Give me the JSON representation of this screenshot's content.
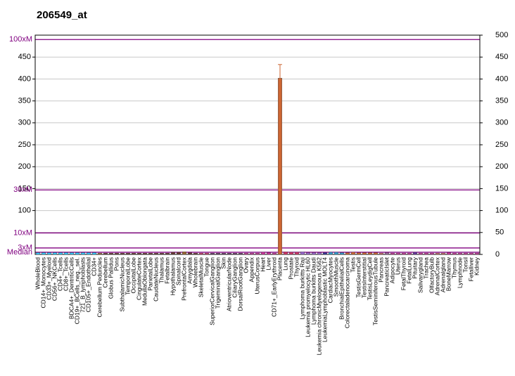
{
  "chart_data": {
    "type": "bar",
    "title": "206549_at",
    "categories": [
      "WholeBlood",
      "CD14+_Monocytes",
      "CD33+_Myeloid",
      "CD56+_NKCells",
      "CD4+_Tcells",
      "CD8+_Tcells",
      "BDCA4+_DentriticCells",
      "CD19+_BCells_neg._sel.",
      "721_B_lymphoblasts",
      "CD105+_Endothelial",
      "CD34+",
      "Cerebellum Peduncles",
      "Cerebellum",
      "Globus Pallidus",
      "Pons",
      "SubthalamicNucleus",
      "TemporalLobe",
      "OccipitalLobe",
      "CingulateCortex",
      "MedullaOblongata",
      "ParietalLobe",
      "CaudateNucleus",
      "Thalamus",
      "Fetalbrain",
      "Hypothalamus",
      "Spinalcord",
      "PrefrontalCortex",
      "Amygdala",
      "Wholebrain",
      "SkeletalMuscle",
      "Tongue",
      "SuperiorCervicalGanglion",
      "TrigeminalGanglion",
      "Skin",
      "AtrioventricularNode",
      "CiliaryGanglion",
      "DorsalRootGanglion",
      "Ovary",
      "Appendix",
      "UterusCorpus",
      "Heart",
      "Liver",
      "CD71+_EarlyErythroid",
      "Placenta",
      "Lung",
      "Prostate",
      "Thyroid",
      "Lymphoma burkitts Raji",
      "Leukemia promyelocytic HL60",
      "Lymphoma burkitts Daudi",
      "Leukemia chronicMyelogenous K562",
      "LeukemiaLymphoblastic MOLT4",
      "CardiacMyocytes",
      "SmoothMuscle",
      "BronchialEpithelialCells",
      "Colorectaladenocarcinoma",
      "Testis",
      "TestisGermCell",
      "TestisInterstitial",
      "TestisLeydigCell",
      "TestisSeminiferousTubule",
      "Pancreas",
      "PancreaticIslet",
      "Adipocyte",
      "Uterus",
      "FetalThyroid",
      "FetalLung",
      "Pituitary",
      "Salivarygland",
      "Trachea",
      "OlfactoryBulb",
      "AdrenalCortex",
      "Adrenalgland",
      "BoneMarrow",
      "Thymus",
      "Lymphnode",
      "Tonsil",
      "Fetalliver",
      "Kidney"
    ],
    "values": [
      4,
      4,
      4,
      4,
      4,
      4,
      4,
      4,
      4,
      4,
      4,
      3,
      3,
      3,
      3,
      3,
      3,
      3,
      3,
      3,
      3,
      3,
      3,
      3,
      5,
      5,
      6,
      4,
      3,
      3,
      3,
      3,
      3,
      3,
      3,
      3,
      3,
      3,
      3,
      3,
      5,
      4,
      3,
      402,
      6,
      5,
      5,
      6,
      4,
      4,
      4,
      4,
      5,
      5,
      4,
      4,
      5,
      4,
      4,
      4,
      4,
      3,
      4,
      3,
      3,
      3,
      3,
      5,
      3,
      3,
      3,
      3,
      3,
      4,
      3,
      3,
      3,
      3,
      3
    ],
    "errors": [
      null,
      null,
      null,
      null,
      null,
      null,
      null,
      null,
      null,
      null,
      null,
      null,
      null,
      null,
      null,
      null,
      null,
      null,
      null,
      null,
      null,
      null,
      null,
      null,
      null,
      null,
      null,
      null,
      null,
      null,
      null,
      null,
      null,
      null,
      null,
      null,
      null,
      null,
      null,
      null,
      null,
      null,
      null,
      31,
      null,
      null,
      null,
      null,
      null,
      null,
      null,
      null,
      null,
      null,
      null,
      null,
      null,
      null,
      null,
      null,
      null,
      null,
      null,
      null,
      null,
      null,
      null,
      null,
      null,
      null,
      null,
      null,
      null,
      null,
      null,
      null,
      null,
      null,
      null
    ],
    "colors": [
      "#33ccff",
      "#33ccff",
      "#33ccff",
      "#33ccff",
      "#33ccff",
      "#33ccff",
      "#33ccff",
      "#33ccff",
      "#33ccff",
      "#33ccff",
      "#33ccff",
      "#996633",
      "#663333",
      "#663333",
      "#663333",
      "#663333",
      "#663333",
      "#663333",
      "#663333",
      "#663333",
      "#663333",
      "#663333",
      "#663333",
      "#663333",
      "#663333",
      "#663333",
      "#996633",
      "#663333",
      "#663333",
      "#cc3366",
      "#cc3366",
      "#663366",
      "#663366",
      "#663366",
      "#663366",
      "#663366",
      "#663366",
      "#cc3399",
      "#cc3399",
      "#cc3399",
      "#cc3399",
      "#cc3399",
      "#cc3399",
      "#cc6633",
      "#cc3366",
      "#cc3366",
      "#cc3366",
      "#9966cc",
      "#9966cc",
      "#9966cc",
      "#9966cc",
      "#333399",
      "#3399cc",
      "#3399cc",
      "#3399cc",
      "#cc6633",
      "#cc6633",
      "#cc6633",
      "#cc6633",
      "#cc6633",
      "#cc6633",
      "#cc6666",
      "#996699",
      "#cc3399",
      "#cc3399",
      "#cc3399",
      "#cc3399",
      "#663399",
      "#cc3399",
      "#cc3399",
      "#cc3399",
      "#cc6666",
      "#cc6666",
      "#cc3399",
      "#cc3399",
      "#cc3399",
      "#cc3399",
      "#cc3399",
      "#cc3399"
    ],
    "ylim": [
      0,
      500
    ],
    "yticks": [
      100,
      150,
      200,
      250,
      300,
      350,
      400,
      450
    ],
    "y2lim": [
      0,
      500
    ],
    "y2ticks": [
      0,
      50,
      100,
      150,
      200,
      250,
      300,
      350,
      400,
      450,
      500
    ],
    "ref_lines": [
      {
        "label": "100xM",
        "value": 490
      },
      {
        "label": "30xM",
        "value": 147
      },
      {
        "label": "10xM",
        "value": 49
      },
      {
        "label": "3xM",
        "value": 14.7
      },
      {
        "label": "Median",
        "value": 4.9
      }
    ],
    "grid": true
  }
}
